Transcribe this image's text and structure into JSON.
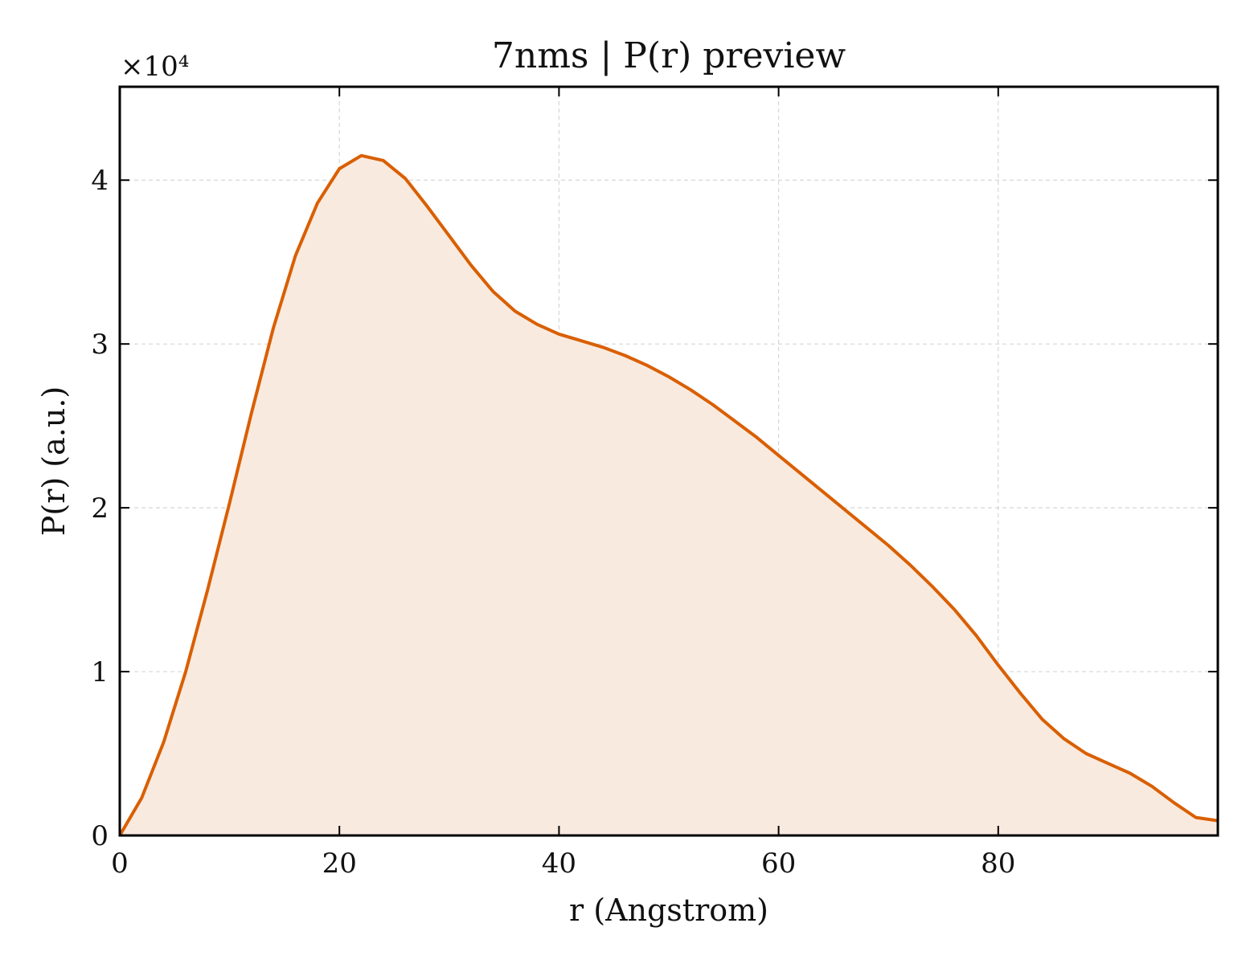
{
  "chart_data": {
    "type": "area",
    "title": "7nms | P(r) preview",
    "xlabel": "r (Angstrom)",
    "ylabel": "P(r) (a.u.)",
    "y_multiplier_label": "×10⁴",
    "xlim": [
      0,
      100
    ],
    "ylim": [
      0,
      4.57
    ],
    "x_ticks": [
      0,
      20,
      40,
      60,
      80
    ],
    "y_ticks": [
      0,
      1,
      2,
      3,
      4
    ],
    "grid": true,
    "line_color": "#d95f02",
    "fill_color": "#f9eadf",
    "series": [
      {
        "x": [
          0,
          2,
          4,
          6,
          8,
          10,
          12,
          14,
          16,
          18,
          20,
          22,
          24,
          26,
          28,
          30,
          32,
          34,
          36,
          38,
          40,
          42,
          44,
          46,
          48,
          50,
          52,
          54,
          56,
          58,
          60,
          62,
          64,
          66,
          68,
          70,
          72,
          74,
          76,
          78,
          80,
          82,
          84,
          86,
          88,
          90,
          92,
          94,
          96,
          98,
          100
        ],
        "y": [
          0,
          0.23,
          0.57,
          1.0,
          1.5,
          2.03,
          2.58,
          3.1,
          3.54,
          3.86,
          4.07,
          4.15,
          4.12,
          4.01,
          3.84,
          3.66,
          3.48,
          3.32,
          3.2,
          3.12,
          3.06,
          3.02,
          2.98,
          2.93,
          2.87,
          2.8,
          2.72,
          2.63,
          2.53,
          2.43,
          2.32,
          2.21,
          2.1,
          1.99,
          1.88,
          1.77,
          1.65,
          1.52,
          1.38,
          1.22,
          1.04,
          0.87,
          0.71,
          0.59,
          0.5,
          0.44,
          0.38,
          0.3,
          0.2,
          0.11,
          0.09
        ]
      }
    ]
  }
}
